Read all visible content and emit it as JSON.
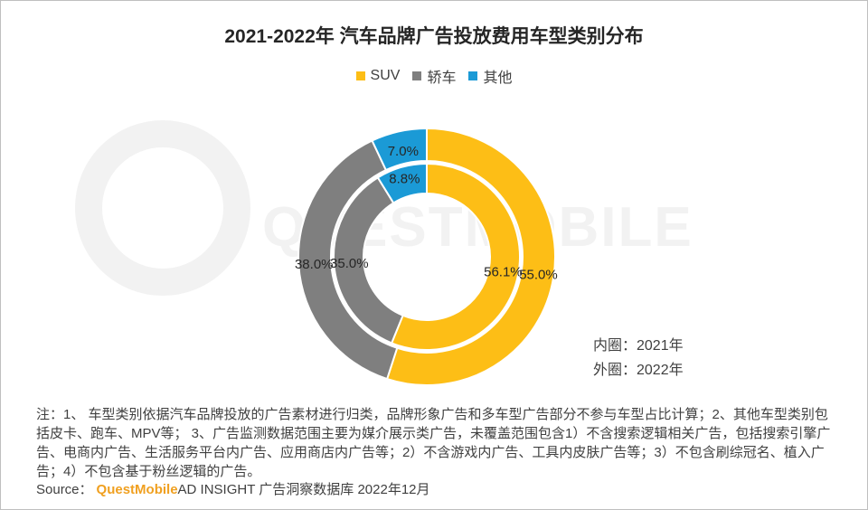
{
  "chart_data": {
    "type": "pie",
    "title": "2021-2022年 汽车品牌广告投放费用车型类别分布",
    "legend": [
      "SUV",
      "轿车",
      "其他"
    ],
    "legend_position": "top",
    "colors": {
      "SUV": "#FDBE16",
      "轿车": "#7F7F7F",
      "其他": "#1B9AD6"
    },
    "inner_ring": {
      "label": "内圈：2021年",
      "values": [
        56.1,
        35.0,
        8.8
      ],
      "data_labels": [
        "56.1%",
        "35.0%",
        "8.8%"
      ]
    },
    "outer_ring": {
      "label": "外圈：2022年",
      "values": [
        55.0,
        38.0,
        7.0
      ],
      "data_labels": [
        "55.0%",
        "38.0%",
        "7.0%"
      ]
    }
  },
  "watermark": "QUESTMOBILE",
  "footnote": "注：1、 车型类别依据汽车品牌投放的广告素材进行归类，品牌形象广告和多车型广告部分不参与车型占比计算；2、其他车型类别包括皮卡、跑车、MPV等； 3、广告监测数据范围主要为媒介展示类广告，未覆盖范围包含1）不含搜索逻辑相关广告，包括搜索引擎广告、电商内广告、生活服务平台内广告、应用商店内广告等；2）不含游戏内广告、工具内皮肤广告等；3）不包含刷综冠名、植入广告；4）不包含基于粉丝逻辑的广告。",
  "source": {
    "prefix": "Source：",
    "brand": "QuestMobile",
    "suffix": " AD INSIGHT 广告洞察数据库 2022年12月"
  }
}
